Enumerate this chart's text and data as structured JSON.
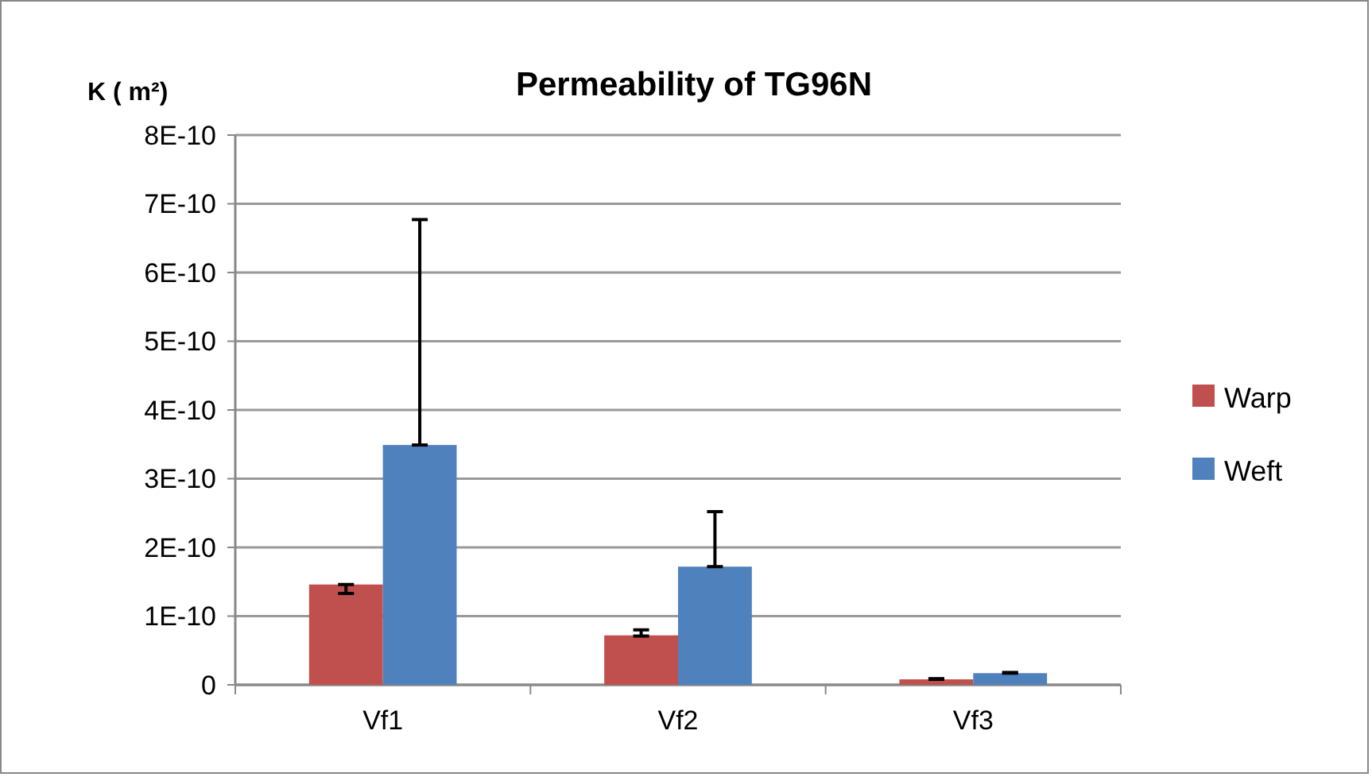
{
  "chart_data": {
    "type": "bar",
    "title": "Permeability of TG96N",
    "ylabel": "K ( m²)",
    "categories": [
      "Vf1",
      "Vf2",
      "Vf3"
    ],
    "series": [
      {
        "name": "Warp",
        "color": "#c0504d",
        "values": [
          1.46e-10,
          7.2e-11,
          8e-12
        ],
        "errors": [
          [
            1.33e-10,
            1.46e-10
          ],
          [
            7.1e-11,
            8e-11
          ],
          [
            8e-12,
            9e-12
          ]
        ]
      },
      {
        "name": "Weft",
        "color": "#4f81bd",
        "values": [
          3.49e-10,
          1.72e-10,
          1.7e-11
        ],
        "errors": [
          [
            3.49e-10,
            6.77e-10
          ],
          [
            1.72e-10,
            2.52e-10
          ],
          [
            1.7e-11,
            1.8e-11
          ]
        ]
      }
    ],
    "ylim": [
      0,
      8e-10
    ],
    "yticks": [
      0,
      {
        "value": 1e-10,
        "label": "1E-10"
      },
      {
        "value": 2e-10,
        "label": "2E-10"
      },
      {
        "value": 3e-10,
        "label": "3E-10"
      },
      {
        "value": 4e-10,
        "label": "4E-10"
      },
      {
        "value": 5e-10,
        "label": "5E-10"
      },
      {
        "value": 6e-10,
        "label": "6E-10"
      },
      {
        "value": 7e-10,
        "label": "7E-10"
      },
      {
        "value": 8e-10,
        "label": "8E-10"
      }
    ],
    "grid": "y",
    "legend": "right"
  }
}
